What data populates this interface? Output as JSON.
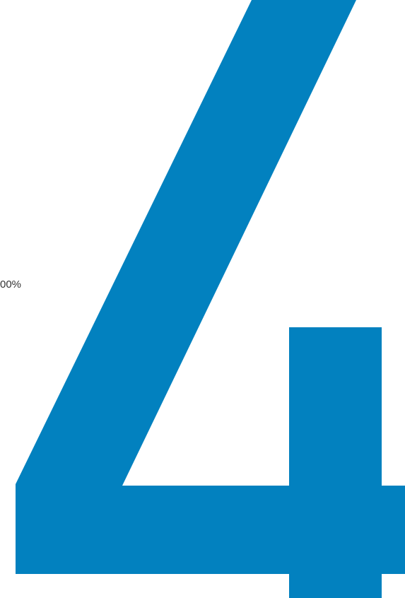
{
  "page": {
    "percent_label": "00%",
    "glyph_name": "four-numeral-graphic",
    "accent_color": "#0281BF",
    "text_color": "#333333",
    "background_color": "#FFFFFF"
  }
}
